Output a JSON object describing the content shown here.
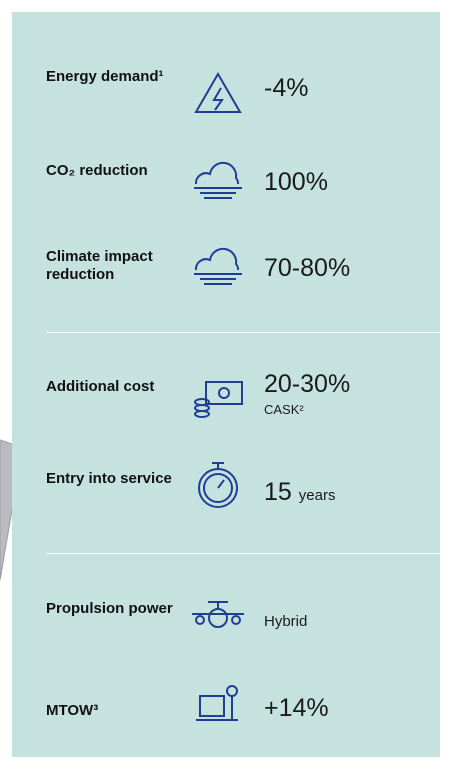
{
  "rows": [
    {
      "label": "Energy demand¹",
      "value": "-4%"
    },
    {
      "label": "CO₂ reduction",
      "value": "100%"
    },
    {
      "label": "Climate impact reduction",
      "value": "70-80%"
    },
    {
      "label": "Additional cost",
      "value": "20-30%",
      "note": "CASK²"
    },
    {
      "label": "Entry into service",
      "value": "15",
      "unit": "years"
    },
    {
      "label": "Propulsion power",
      "value": "Hybrid"
    },
    {
      "label": "MTOW³",
      "value": "+14%"
    }
  ]
}
